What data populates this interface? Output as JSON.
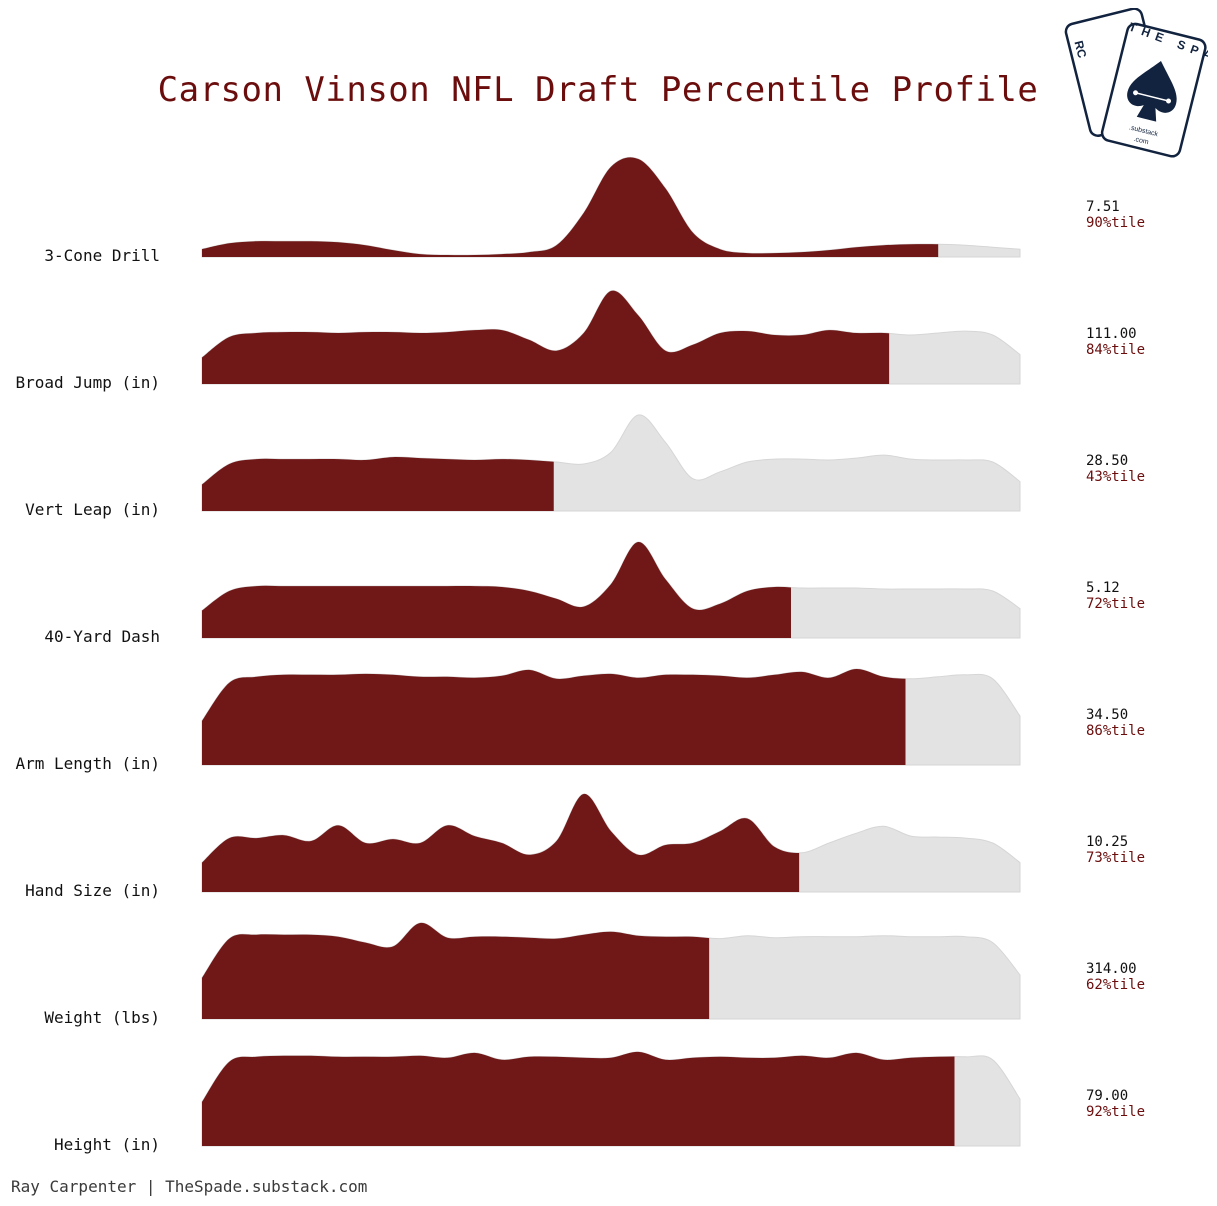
{
  "colors": {
    "fill": "#701818",
    "background_fill": "#e3e3e3",
    "title": "#6b0d0d",
    "logo": "#12233f"
  },
  "logo": {
    "card_back_text": "RC",
    "card_front_text": "THE SPADE",
    "card_sub_text": ".substack",
    "card_com_text": ".com"
  },
  "footer": "Ray Carpenter | TheSpade.substack.com",
  "chart_data": {
    "type": "area",
    "title": "Carson Vinson NFL Draft Percentile Profile",
    "metrics": [
      {
        "label": "3-Cone Drill",
        "value": "7.51",
        "percentile": 90,
        "pct_label": "90%tile",
        "density": [
          0.08,
          0.14,
          0.16,
          0.16,
          0.16,
          0.15,
          0.12,
          0.07,
          0.03,
          0.02,
          0.02,
          0.03,
          0.05,
          0.12,
          0.45,
          0.92,
          1.0,
          0.7,
          0.25,
          0.08,
          0.04,
          0.04,
          0.05,
          0.07,
          0.1,
          0.12,
          0.13,
          0.13,
          0.12,
          0.1,
          0.08
        ]
      },
      {
        "label": "Broad Jump (in)",
        "value": "111.00",
        "percentile": 84,
        "pct_label": "84%tile",
        "density": [
          0.27,
          0.48,
          0.52,
          0.53,
          0.53,
          0.52,
          0.53,
          0.53,
          0.52,
          0.53,
          0.55,
          0.55,
          0.45,
          0.34,
          0.52,
          0.95,
          0.7,
          0.34,
          0.4,
          0.52,
          0.54,
          0.5,
          0.5,
          0.55,
          0.52,
          0.52,
          0.5,
          0.52,
          0.54,
          0.5,
          0.3
        ]
      },
      {
        "label": "Vert Leap (in)",
        "value": "28.50",
        "percentile": 43,
        "pct_label": "43%tile",
        "density": [
          0.27,
          0.48,
          0.53,
          0.53,
          0.53,
          0.53,
          0.52,
          0.55,
          0.54,
          0.53,
          0.52,
          0.53,
          0.52,
          0.5,
          0.48,
          0.6,
          0.98,
          0.7,
          0.33,
          0.4,
          0.5,
          0.53,
          0.53,
          0.52,
          0.54,
          0.57,
          0.53,
          0.52,
          0.52,
          0.5,
          0.3
        ]
      },
      {
        "label": "40-Yard Dash",
        "value": "5.12",
        "percentile": 72,
        "pct_label": "72%tile",
        "density": [
          0.28,
          0.48,
          0.53,
          0.53,
          0.53,
          0.53,
          0.53,
          0.53,
          0.53,
          0.53,
          0.53,
          0.52,
          0.48,
          0.4,
          0.32,
          0.55,
          0.98,
          0.6,
          0.3,
          0.35,
          0.48,
          0.52,
          0.51,
          0.51,
          0.51,
          0.5,
          0.5,
          0.5,
          0.5,
          0.48,
          0.3
        ]
      },
      {
        "label": "Arm Length (in)",
        "value": "34.50",
        "percentile": 86,
        "pct_label": "86%tile",
        "density": [
          0.45,
          0.84,
          0.9,
          0.92,
          0.92,
          0.92,
          0.93,
          0.92,
          0.9,
          0.9,
          0.89,
          0.91,
          0.97,
          0.88,
          0.91,
          0.93,
          0.89,
          0.92,
          0.92,
          0.91,
          0.89,
          0.92,
          0.95,
          0.89,
          0.98,
          0.9,
          0.88,
          0.9,
          0.92,
          0.88,
          0.5
        ]
      },
      {
        "label": "Hand Size (in)",
        "value": "10.25",
        "percentile": 73,
        "pct_label": "73%tile",
        "density": [
          0.3,
          0.55,
          0.55,
          0.58,
          0.52,
          0.68,
          0.5,
          0.54,
          0.5,
          0.68,
          0.57,
          0.5,
          0.38,
          0.52,
          1.0,
          0.62,
          0.38,
          0.48,
          0.5,
          0.62,
          0.75,
          0.46,
          0.4,
          0.5,
          0.6,
          0.67,
          0.57,
          0.56,
          0.55,
          0.5,
          0.3
        ]
      },
      {
        "label": "Weight (lbs)",
        "value": "314.00",
        "percentile": 62,
        "pct_label": "62%tile",
        "density": [
          0.42,
          0.82,
          0.86,
          0.86,
          0.86,
          0.84,
          0.78,
          0.74,
          0.98,
          0.83,
          0.84,
          0.84,
          0.83,
          0.82,
          0.86,
          0.89,
          0.85,
          0.84,
          0.84,
          0.82,
          0.85,
          0.83,
          0.84,
          0.84,
          0.84,
          0.85,
          0.84,
          0.84,
          0.84,
          0.78,
          0.45
        ]
      },
      {
        "label": "Height (in)",
        "value": "79.00",
        "percentile": 92,
        "pct_label": "92%tile",
        "density": [
          0.45,
          0.86,
          0.91,
          0.92,
          0.92,
          0.91,
          0.91,
          0.91,
          0.92,
          0.9,
          0.95,
          0.88,
          0.91,
          0.91,
          0.9,
          0.9,
          0.96,
          0.88,
          0.9,
          0.91,
          0.9,
          0.9,
          0.92,
          0.9,
          0.95,
          0.88,
          0.9,
          0.91,
          0.91,
          0.88,
          0.48
        ]
      }
    ]
  }
}
